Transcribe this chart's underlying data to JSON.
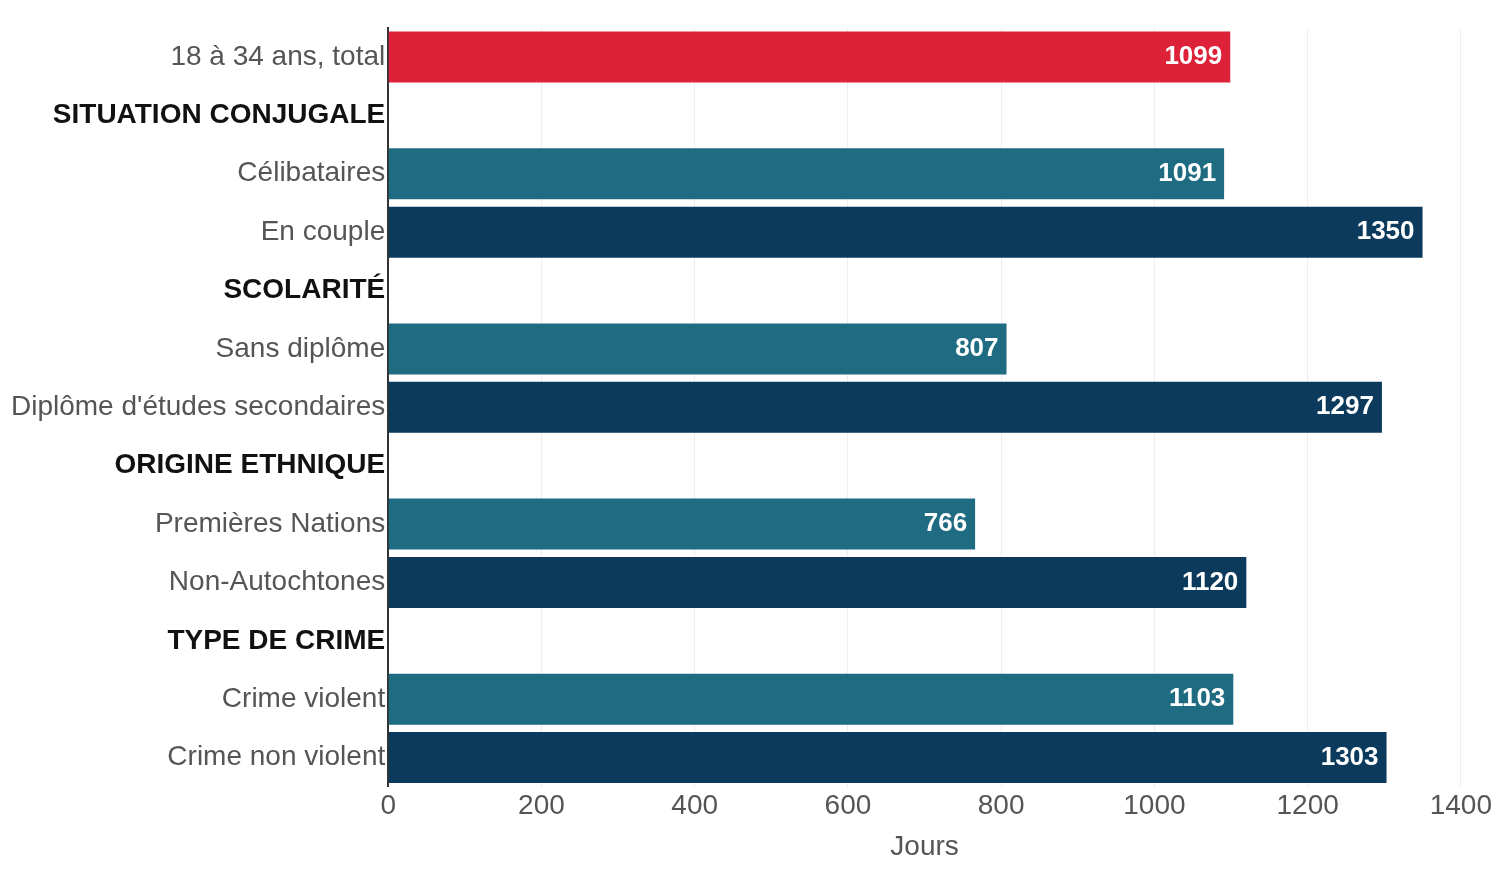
{
  "chart_data": {
    "type": "bar",
    "orientation": "horizontal",
    "xlabel": "Jours",
    "categories": [
      "18 à 34 ans, total",
      "SITUATION CONJUGALE",
      "Célibataires",
      "En couple",
      "SCOLARITÉ",
      "Sans diplôme",
      "Diplôme d'études secondaires",
      "ORIGINE ETHNIQUE",
      "Premières Nations",
      "Non-Autochtones",
      "TYPE DE CRIME",
      "Crime violent",
      "Crime non violent"
    ],
    "values": [
      1099,
      null,
      1091,
      1350,
      null,
      807,
      1297,
      null,
      766,
      1120,
      null,
      1103,
      1303
    ],
    "colors": [
      "#dc2138",
      null,
      "#1e6b82",
      "#0b3a5c",
      null,
      "#1e6b82",
      "#0b3a5c",
      null,
      "#1e6b82",
      "#0b3a5c",
      null,
      "#1e6b82",
      "#0b3a5c"
    ],
    "xlim": [
      0,
      1400
    ],
    "xticks": [
      0,
      200,
      400,
      600,
      800,
      1000,
      1200,
      1400
    ],
    "grid": "x",
    "data_labels": true,
    "legend": false
  }
}
